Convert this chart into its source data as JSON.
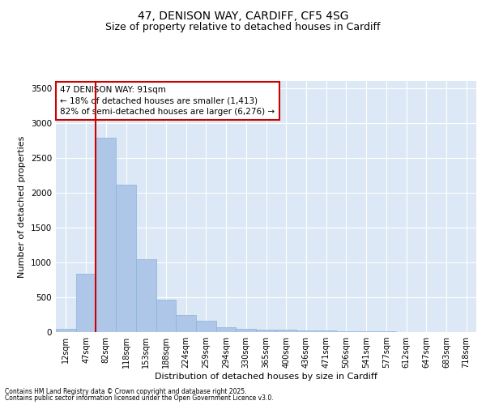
{
  "title_line1": "47, DENISON WAY, CARDIFF, CF5 4SG",
  "title_line2": "Size of property relative to detached houses in Cardiff",
  "xlabel": "Distribution of detached houses by size in Cardiff",
  "ylabel": "Number of detached properties",
  "categories": [
    "12sqm",
    "47sqm",
    "82sqm",
    "118sqm",
    "153sqm",
    "188sqm",
    "224sqm",
    "259sqm",
    "294sqm",
    "330sqm",
    "365sqm",
    "400sqm",
    "436sqm",
    "471sqm",
    "506sqm",
    "541sqm",
    "577sqm",
    "612sqm",
    "647sqm",
    "683sqm",
    "718sqm"
  ],
  "bar_heights": [
    50,
    840,
    2790,
    2110,
    1040,
    460,
    240,
    160,
    70,
    50,
    35,
    30,
    25,
    20,
    15,
    10,
    8,
    5,
    3,
    2,
    2
  ],
  "bar_color": "#aec6e8",
  "bar_edgecolor": "#8ab4d8",
  "property_line_x": 1.5,
  "annotation_text": "47 DENISON WAY: 91sqm\n← 18% of detached houses are smaller (1,413)\n82% of semi-detached houses are larger (6,276) →",
  "annotation_box_color": "#ffffff",
  "annotation_box_edge": "#cc0000",
  "vline_color": "#cc0000",
  "ylim": [
    0,
    3600
  ],
  "yticks": [
    0,
    500,
    1000,
    1500,
    2000,
    2500,
    3000,
    3500
  ],
  "background_color": "#dce8f5",
  "footer_line1": "Contains HM Land Registry data © Crown copyright and database right 2025.",
  "footer_line2": "Contains public sector information licensed under the Open Government Licence v3.0.",
  "title_fontsize": 10,
  "subtitle_fontsize": 9,
  "label_fontsize": 8,
  "tick_fontsize": 7,
  "annot_fontsize": 7.5,
  "footer_fontsize": 5.5
}
